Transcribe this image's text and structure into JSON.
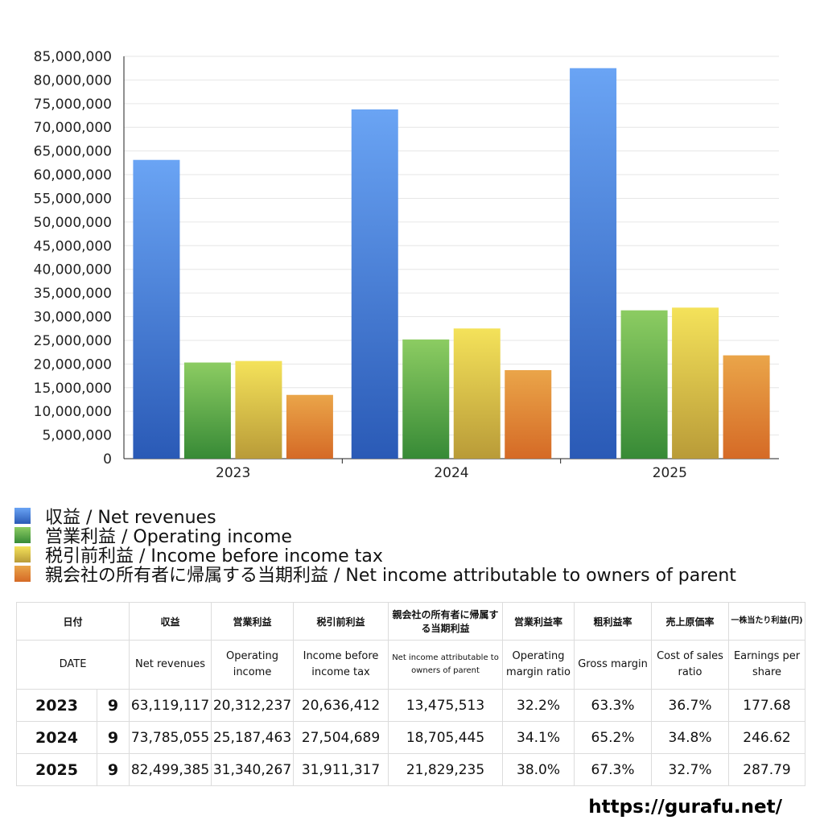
{
  "chart_data": {
    "type": "bar",
    "categories": [
      "2023",
      "2024",
      "2025"
    ],
    "series": [
      {
        "name": "収益 / Net revenues",
        "values": [
          63119117,
          73785055,
          82499385
        ],
        "colors": [
          "#6aa4f4",
          "#2a5ab6"
        ]
      },
      {
        "name": "営業利益 / Operating income",
        "values": [
          20312237,
          25187463,
          31340267
        ],
        "colors": [
          "#8ccc62",
          "#378a36"
        ]
      },
      {
        "name": "税引前利益 / Income before income tax",
        "values": [
          20636412,
          27504689,
          31911317
        ],
        "colors": [
          "#f4e25a",
          "#b99b38"
        ]
      },
      {
        "name": "親会社の所有者に帰属する当期利益 / Net income attributable to owners of parent",
        "values": [
          13475513,
          18705445,
          21829235
        ],
        "colors": [
          "#eaa549",
          "#d56a26"
        ]
      }
    ],
    "ylim": [
      0,
      85000000
    ],
    "yticks": [
      "0",
      "5,000,000",
      "10,000,000",
      "15,000,000",
      "20,000,000",
      "25,000,000",
      "30,000,000",
      "35,000,000",
      "40,000,000",
      "45,000,000",
      "50,000,000",
      "55,000,000",
      "60,000,000",
      "65,000,000",
      "70,000,000",
      "75,000,000",
      "80,000,000",
      "85,000,000"
    ],
    "grid": true,
    "legend": "bottom"
  },
  "table": {
    "header_jp": [
      "日付",
      "収益",
      "営業利益",
      "税引前利益",
      "親会社の所有者に帰属する当期利益",
      "営業利益率",
      "粗利益率",
      "売上原価率",
      "一株当たり利益(円)"
    ],
    "header_en": [
      "DATE",
      "Net revenues",
      "Operating income",
      "Income before income tax",
      "Net income attributable to owners of parent",
      "Operating margin ratio",
      "Gross margin",
      "Cost of sales ratio",
      "Earnings per share"
    ],
    "rows": [
      {
        "year": "2023",
        "month": "9",
        "revenues": "63,119,117",
        "operating": "20,312,237",
        "pretax": "20,636,412",
        "net": "13,475,513",
        "op_margin": "32.2%",
        "gross": "63.3%",
        "cost_ratio": "36.7%",
        "eps": "177.68"
      },
      {
        "year": "2024",
        "month": "9",
        "revenues": "73,785,055",
        "operating": "25,187,463",
        "pretax": "27,504,689",
        "net": "18,705,445",
        "op_margin": "34.1%",
        "gross": "65.2%",
        "cost_ratio": "34.8%",
        "eps": "246.62"
      },
      {
        "year": "2025",
        "month": "9",
        "revenues": "82,499,385",
        "operating": "31,340,267",
        "pretax": "31,911,317",
        "net": "21,829,235",
        "op_margin": "38.0%",
        "gross": "67.3%",
        "cost_ratio": "32.7%",
        "eps": "287.79"
      }
    ]
  },
  "footer": {
    "url": "https://gurafu.net/"
  }
}
